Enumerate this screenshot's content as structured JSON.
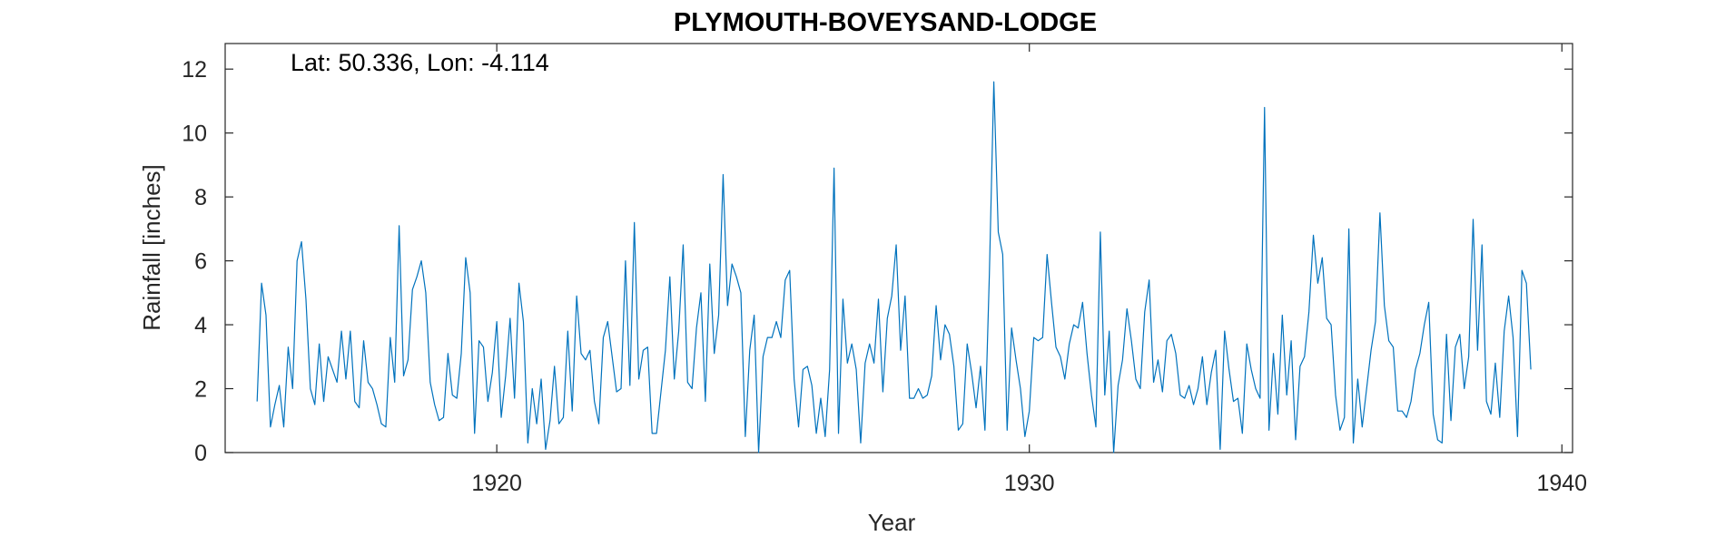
{
  "chart_data": {
    "type": "line",
    "title": "PLYMOUTH-BOVEYSAND-LODGE",
    "xlabel": "Year",
    "ylabel": "Rainfall [inches]",
    "annotation": "Lat: 50.336, Lon: -4.114",
    "xlim": [
      1914.9,
      1940.2
    ],
    "ylim": [
      0,
      12.8
    ],
    "xticks": [
      1920,
      1930,
      1940
    ],
    "yticks": [
      0,
      2,
      4,
      6,
      8,
      10,
      12
    ],
    "grid": false,
    "line_color": "#0072BD",
    "series": [
      {
        "x_start": 1915.5,
        "x_step": 0.083333,
        "values": [
          1.6,
          5.3,
          4.3,
          0.8,
          1.5,
          2.1,
          0.8,
          3.3,
          2.0,
          6.0,
          6.6,
          4.8,
          2.0,
          1.5,
          3.4,
          1.6,
          3.0,
          2.6,
          2.2,
          3.8,
          2.3,
          3.8,
          1.6,
          1.4,
          3.5,
          2.2,
          2.0,
          1.5,
          0.9,
          0.8,
          3.6,
          2.2,
          7.1,
          2.4,
          2.9,
          5.1,
          5.5,
          6.0,
          5.0,
          2.2,
          1.5,
          1.0,
          1.1,
          3.1,
          1.8,
          1.7,
          3.1,
          6.1,
          5.0,
          0.6,
          3.5,
          3.3,
          1.6,
          2.5,
          4.1,
          1.1,
          2.4,
          4.2,
          1.7,
          5.3,
          4.1,
          0.3,
          2.0,
          0.9,
          2.3,
          0.1,
          1.0,
          2.7,
          0.9,
          1.1,
          3.8,
          1.3,
          4.9,
          3.1,
          2.9,
          3.2,
          1.6,
          0.9,
          3.6,
          4.1,
          3.0,
          1.9,
          2.0,
          6.0,
          2.1,
          7.2,
          2.3,
          3.2,
          3.3,
          0.6,
          0.6,
          1.9,
          3.2,
          5.5,
          2.3,
          3.8,
          6.5,
          2.2,
          2.0,
          3.9,
          5.0,
          1.6,
          5.9,
          3.1,
          4.3,
          8.7,
          4.6,
          5.9,
          5.5,
          5.0,
          0.5,
          3.2,
          4.3,
          0.0,
          3.0,
          3.6,
          3.6,
          4.1,
          3.6,
          5.4,
          5.7,
          2.3,
          0.8,
          2.6,
          2.7,
          2.1,
          0.6,
          1.7,
          0.5,
          2.6,
          8.9,
          0.6,
          4.8,
          2.8,
          3.4,
          2.6,
          0.3,
          2.8,
          3.4,
          2.8,
          4.8,
          1.9,
          4.2,
          4.9,
          6.5,
          3.2,
          4.9,
          1.7,
          1.7,
          2.0,
          1.7,
          1.8,
          2.4,
          4.6,
          2.9,
          4.0,
          3.7,
          2.7,
          0.7,
          0.9,
          3.4,
          2.5,
          1.4,
          2.7,
          0.7,
          5.6,
          11.6,
          6.9,
          6.2,
          0.7,
          3.9,
          2.9,
          2.0,
          0.5,
          1.3,
          3.6,
          3.5,
          3.6,
          6.2,
          4.7,
          3.3,
          3.0,
          2.3,
          3.4,
          4.0,
          3.9,
          4.7,
          3.1,
          1.8,
          0.8,
          6.9,
          1.8,
          3.8,
          0.0,
          2.1,
          2.9,
          4.5,
          3.5,
          2.3,
          2.0,
          4.4,
          5.4,
          2.2,
          2.9,
          1.9,
          3.5,
          3.7,
          3.1,
          1.8,
          1.7,
          2.1,
          1.5,
          2.0,
          3.0,
          1.5,
          2.5,
          3.2,
          0.1,
          3.8,
          2.6,
          1.6,
          1.7,
          0.6,
          3.4,
          2.6,
          2.0,
          1.7,
          10.8,
          0.7,
          3.1,
          1.2,
          4.3,
          1.8,
          3.5,
          0.4,
          2.7,
          3.0,
          4.4,
          6.8,
          5.3,
          6.1,
          4.2,
          4.0,
          1.8,
          0.7,
          1.1,
          7.0,
          0.3,
          2.3,
          0.8,
          2.0,
          3.2,
          4.1,
          7.5,
          4.6,
          3.5,
          3.3,
          1.3,
          1.3,
          1.1,
          1.6,
          2.6,
          3.1,
          4.0,
          4.7,
          1.2,
          0.4,
          0.3,
          3.7,
          1.0,
          3.3,
          3.7,
          2.0,
          3.0,
          7.3,
          3.2,
          6.5,
          1.6,
          1.2,
          2.8,
          1.1,
          3.8,
          4.9,
          3.6,
          0.5,
          5.7,
          5.3,
          2.6
        ]
      }
    ]
  }
}
